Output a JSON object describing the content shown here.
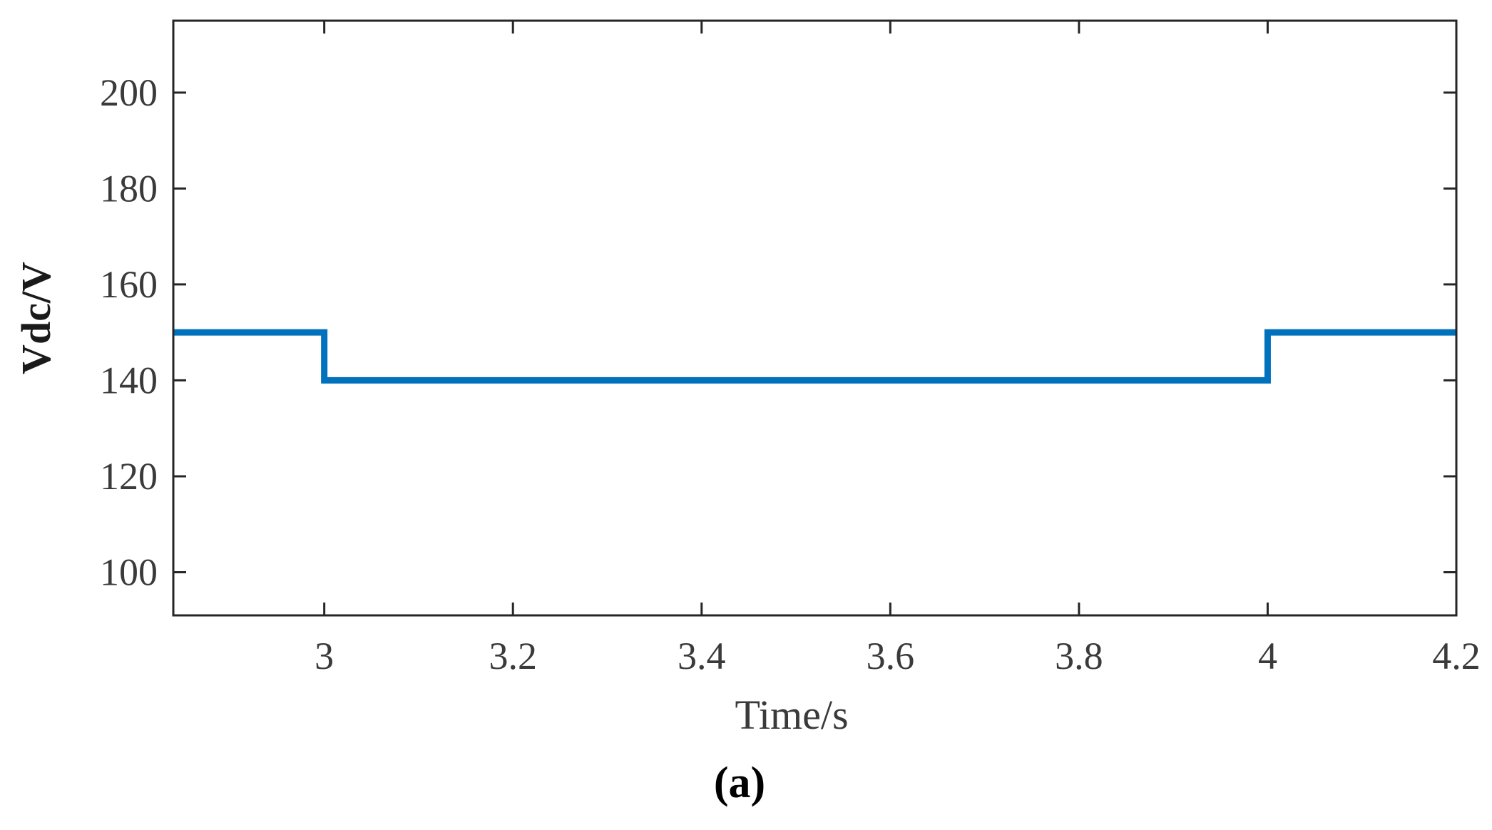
{
  "chart_data": {
    "type": "line",
    "xlabel": "Time/s",
    "ylabel": "Vdc/V",
    "panel_label": "(a)",
    "xlim": [
      2.84,
      4.2
    ],
    "ylim": [
      91,
      215
    ],
    "x_ticks": [
      3,
      3.2,
      3.4,
      3.6,
      3.8,
      4,
      4.2
    ],
    "x_tick_labels": [
      "3",
      "3.2",
      "3.4",
      "3.6",
      "3.8",
      "4",
      "4.2"
    ],
    "y_ticks": [
      100,
      120,
      140,
      160,
      180,
      200
    ],
    "y_tick_labels": [
      "100",
      "120",
      "140",
      "160",
      "180",
      "200"
    ],
    "grid": false,
    "series": [
      {
        "color": "#0072BD",
        "x": [
          2.84,
          3.0,
          3.0,
          4.0,
          4.0,
          4.2
        ],
        "y": [
          150,
          150,
          140,
          140,
          150,
          150
        ]
      }
    ]
  }
}
